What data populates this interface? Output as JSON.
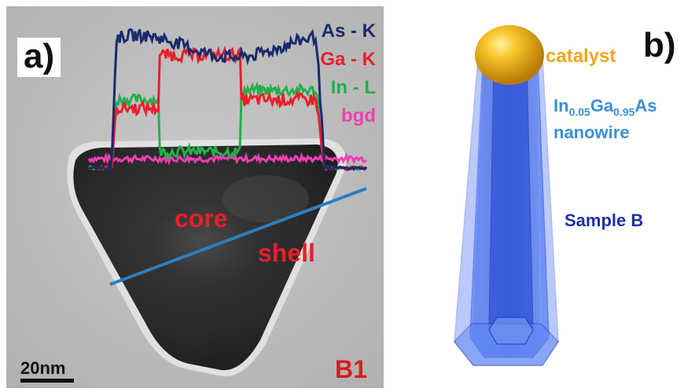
{
  "panel_a": {
    "letter": "a)",
    "legend": [
      {
        "label": "As - K",
        "color": "#1a2a6c"
      },
      {
        "label": "Ga - K",
        "color": "#e8202a"
      },
      {
        "label": "In - L",
        "color": "#22b04a"
      },
      {
        "label": "bgd",
        "color": "#ee3fb2"
      }
    ],
    "core_label": "core",
    "shell_label": "shell",
    "scale_bar_label": "20nm",
    "sample_tag": "B1",
    "scan_line_color": "#2b7fc1"
  },
  "panel_b": {
    "letter": "b)",
    "catalyst_label": "catalyst",
    "catalyst_color": "#f2a61a",
    "nanowire_label_prefix_1": "In",
    "nanowire_label_sub_1": "0.05",
    "nanowire_label_prefix_2": "Ga",
    "nanowire_label_sub_2": "0.95",
    "nanowire_label_suffix": "As",
    "nanowire_label_line2": "nanowire",
    "nanowire_label_color": "#3b8fd6",
    "sample_label": "Sample B",
    "sample_label_color": "#1c2fa8",
    "nanowire_color": "#1f4fe0"
  }
}
